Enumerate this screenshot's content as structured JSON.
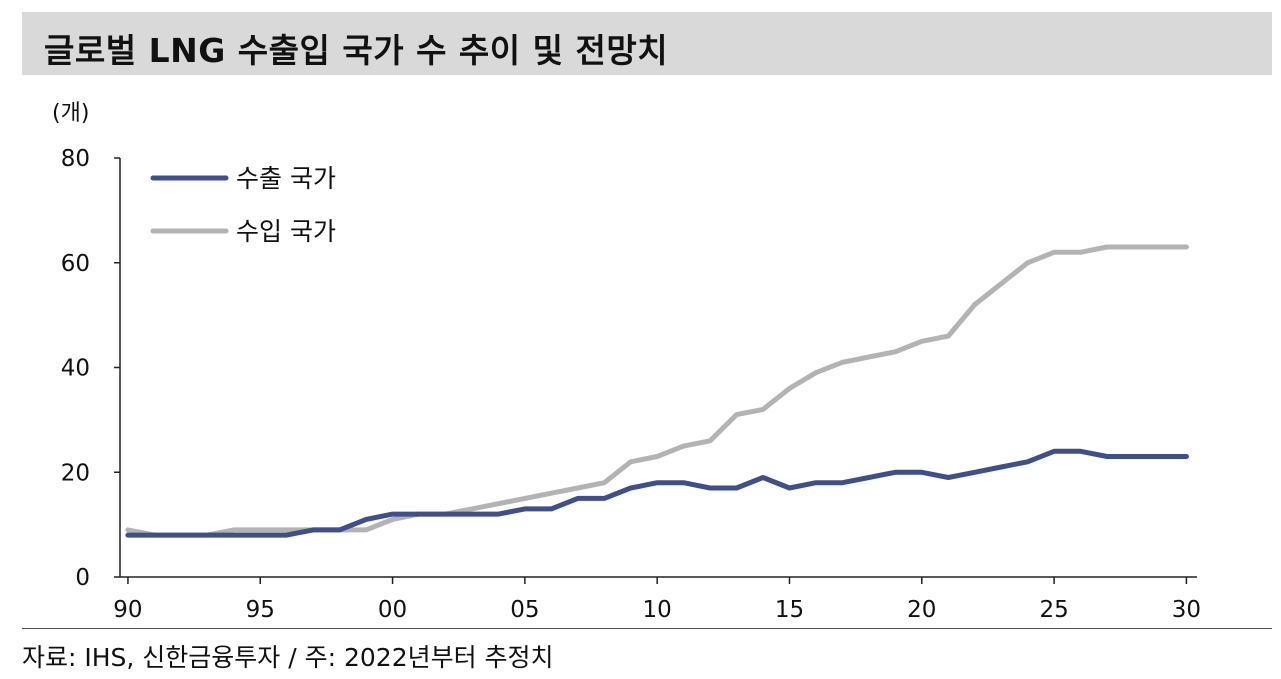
{
  "title": "글로벌 LNG 수출입 국가 수 추이 및 전망치",
  "unit": "(개)",
  "source": "자료: IHS, 신한금융투자 / 주: 2022년부터 추정치",
  "chart_data": {
    "type": "line",
    "title": "글로벌 LNG 수출입 국가 수 추이 및 전망치",
    "ylabel": "(개)",
    "ylim": [
      0,
      80
    ],
    "xlim": [
      1990,
      2030
    ],
    "yticks": [
      0,
      20,
      40,
      60,
      80
    ],
    "xticks": [
      {
        "value": 1990,
        "label": "90"
      },
      {
        "value": 1995,
        "label": "95"
      },
      {
        "value": 2000,
        "label": "00"
      },
      {
        "value": 2005,
        "label": "05"
      },
      {
        "value": 2010,
        "label": "10"
      },
      {
        "value": 2015,
        "label": "15"
      },
      {
        "value": 2020,
        "label": "20"
      },
      {
        "value": 2025,
        "label": "25"
      },
      {
        "value": 2030,
        "label": "30"
      }
    ],
    "legend_position": "top-left",
    "x": [
      1990,
      1991,
      1992,
      1993,
      1994,
      1995,
      1996,
      1997,
      1998,
      1999,
      2000,
      2001,
      2002,
      2003,
      2004,
      2005,
      2006,
      2007,
      2008,
      2009,
      2010,
      2011,
      2012,
      2013,
      2014,
      2015,
      2016,
      2017,
      2018,
      2019,
      2020,
      2021,
      2022,
      2023,
      2024,
      2025,
      2026,
      2027,
      2028,
      2029,
      2030
    ],
    "series": [
      {
        "name": "수출 국가",
        "color": "#3f4f8c",
        "values": [
          8,
          8,
          8,
          8,
          8,
          8,
          8,
          9,
          9,
          11,
          12,
          12,
          12,
          12,
          12,
          13,
          13,
          15,
          15,
          17,
          18,
          18,
          17,
          17,
          19,
          17,
          18,
          18,
          19,
          20,
          20,
          19,
          20,
          21,
          22,
          24,
          24,
          23,
          23,
          23,
          23
        ]
      },
      {
        "name": "수입 국가",
        "color": "#b3b3b3",
        "values": [
          9,
          8,
          8,
          8,
          9,
          9,
          9,
          9,
          9,
          9,
          11,
          12,
          12,
          13,
          14,
          15,
          16,
          17,
          18,
          22,
          23,
          25,
          26,
          31,
          32,
          36,
          39,
          41,
          42,
          43,
          45,
          46,
          52,
          56,
          60,
          62,
          62,
          63,
          63,
          63,
          63
        ]
      }
    ]
  }
}
